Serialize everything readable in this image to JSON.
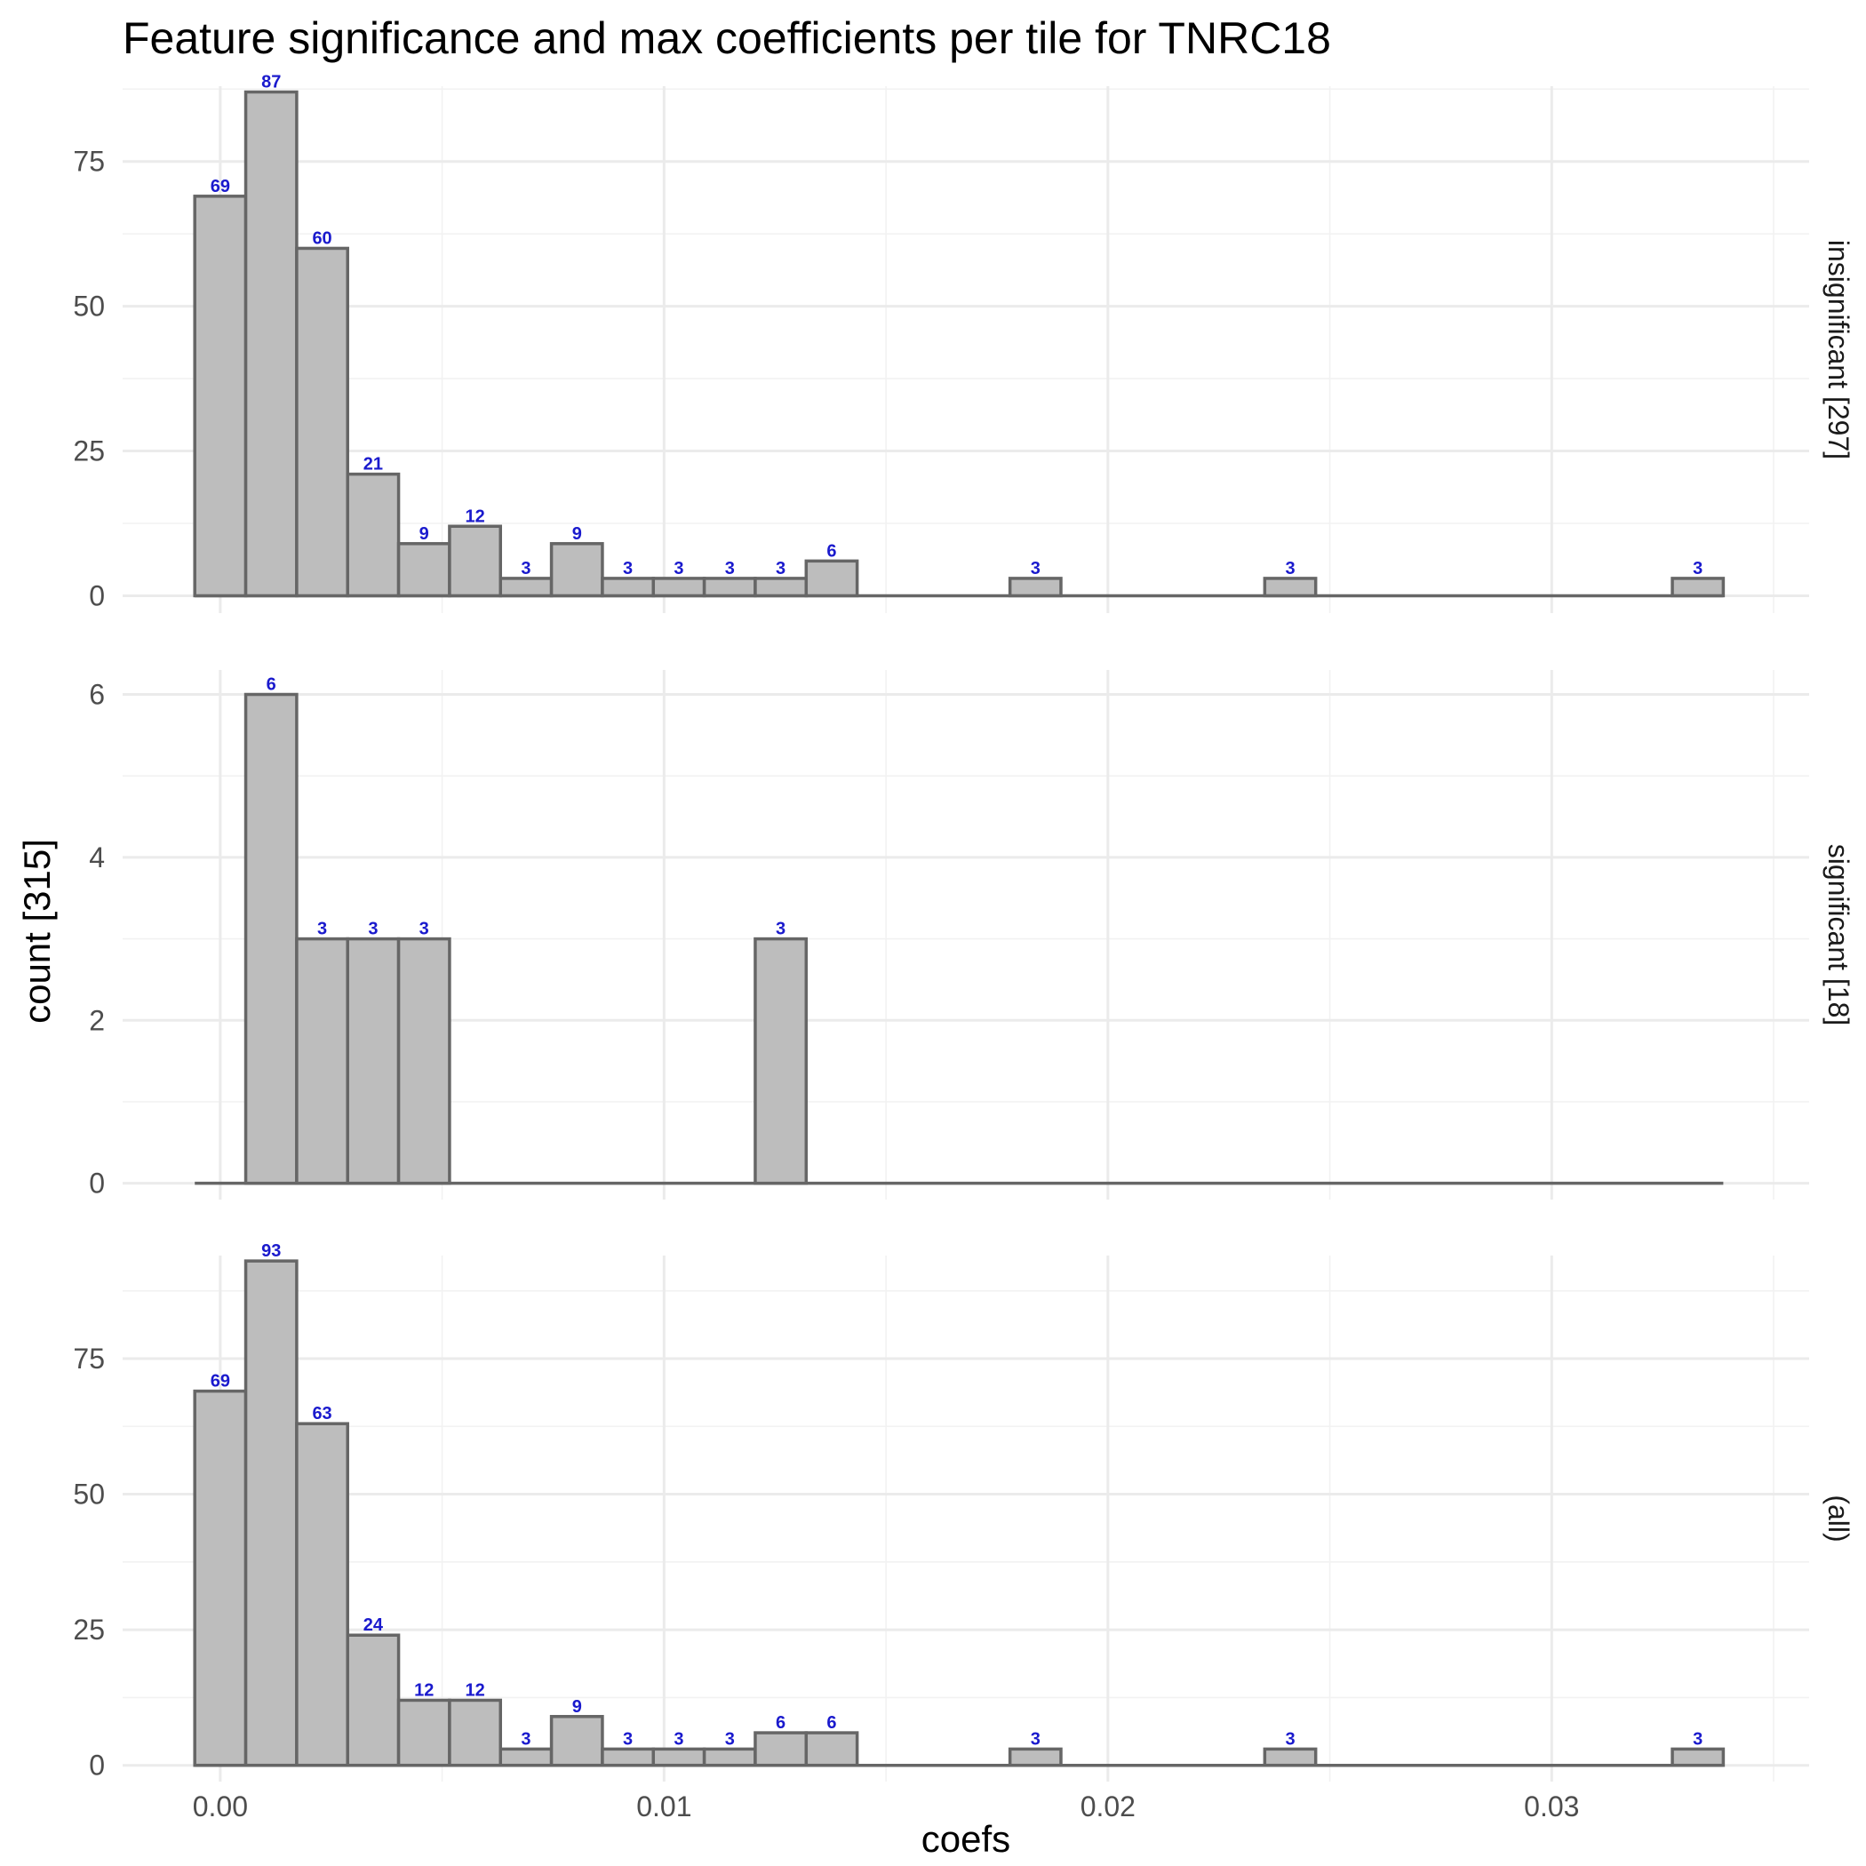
{
  "chart_data": {
    "type": "bar",
    "title": "Feature significance and max coefficients per tile for TNRC18",
    "xlabel": "coefs",
    "ylabel": "count [315]",
    "xlim": [
      -0.0022,
      0.0358
    ],
    "bin_width": 0.001148,
    "first_bin_start": -0.000574,
    "x_ticks": [
      0.0,
      0.01,
      0.02,
      0.03
    ],
    "x_tick_labels": [
      "0.00",
      "0.01",
      "0.02",
      "0.03"
    ],
    "grid": true,
    "legend": "none",
    "bar_label_color": "#1a1acd",
    "bar_fill": "#bdbdbd",
    "bar_stroke": "#666666",
    "panels": [
      {
        "name": "insignificant [297]",
        "ylim": [
          -3,
          88
        ],
        "y_ticks": [
          0,
          25,
          50,
          75
        ],
        "y_tick_labels": [
          "0",
          "25",
          "50",
          "75"
        ],
        "counts": [
          69,
          87,
          60,
          21,
          9,
          12,
          3,
          9,
          3,
          3,
          3,
          3,
          6,
          0,
          0,
          0,
          3,
          0,
          0,
          0,
          0,
          3,
          0,
          0,
          0,
          0,
          0,
          0,
          0,
          3
        ]
      },
      {
        "name": "significant [18]",
        "ylim": [
          -0.2,
          6.3
        ],
        "y_ticks": [
          0,
          2,
          4,
          6
        ],
        "y_tick_labels": [
          "0",
          "2",
          "4",
          "6"
        ],
        "counts": [
          0,
          6,
          3,
          3,
          3,
          0,
          0,
          0,
          0,
          0,
          0,
          3,
          0,
          0,
          0,
          0,
          0,
          0,
          0,
          0,
          0,
          0,
          0,
          0,
          0,
          0,
          0,
          0,
          0,
          0
        ]
      },
      {
        "name": "(all)",
        "ylim": [
          -3,
          94
        ],
        "y_ticks": [
          0,
          25,
          50,
          75
        ],
        "y_tick_labels": [
          "0",
          "25",
          "50",
          "75"
        ],
        "counts": [
          69,
          93,
          63,
          24,
          12,
          12,
          3,
          9,
          3,
          3,
          3,
          6,
          6,
          0,
          0,
          0,
          3,
          0,
          0,
          0,
          0,
          3,
          0,
          0,
          0,
          0,
          0,
          0,
          0,
          3
        ]
      }
    ]
  }
}
